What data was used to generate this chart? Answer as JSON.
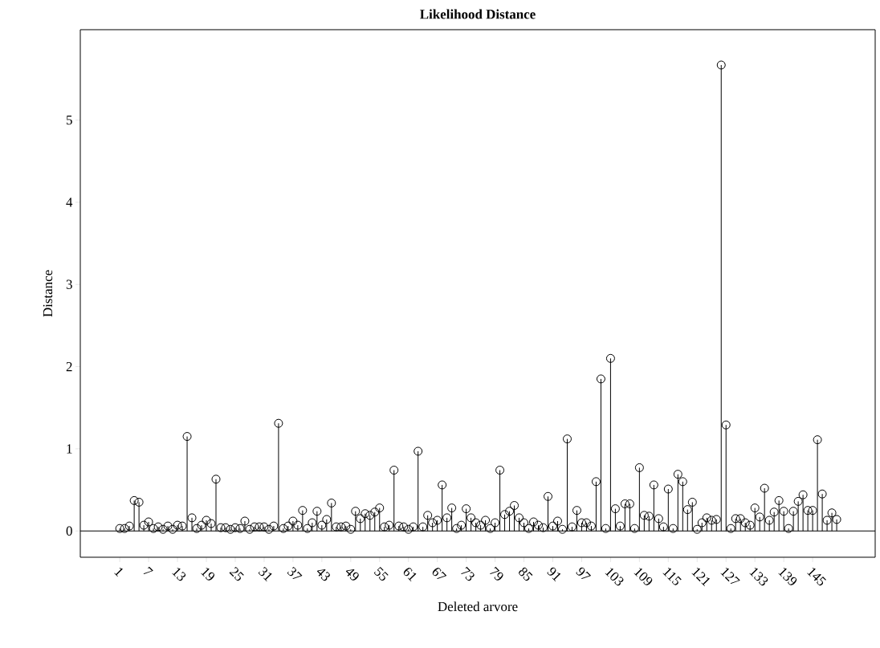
{
  "chart_data": {
    "type": "lollipop",
    "title": "Likelihood Distance",
    "xlabel": "Deleted arvore",
    "ylabel": "Distance",
    "categories": [
      "1",
      null,
      null,
      null,
      null,
      null,
      "7",
      null,
      null,
      null,
      null,
      null,
      "13",
      null,
      null,
      null,
      null,
      null,
      "19",
      null,
      null,
      null,
      null,
      null,
      "25",
      null,
      null,
      null,
      null,
      null,
      "31",
      null,
      null,
      null,
      null,
      null,
      "37",
      null,
      null,
      null,
      null,
      null,
      "43",
      null,
      null,
      null,
      null,
      null,
      "49",
      null,
      null,
      null,
      null,
      null,
      "55",
      null,
      null,
      null,
      null,
      null,
      "61",
      null,
      null,
      null,
      null,
      null,
      "67",
      null,
      null,
      null,
      null,
      null,
      "73",
      null,
      null,
      null,
      null,
      null,
      "79",
      null,
      null,
      null,
      null,
      null,
      "85",
      null,
      null,
      null,
      null,
      null,
      "91",
      null,
      null,
      null,
      null,
      null,
      "97",
      null,
      null,
      null,
      null,
      null,
      "103",
      null,
      null,
      null,
      null,
      null,
      "109",
      null,
      null,
      null,
      null,
      null,
      "115",
      null,
      null,
      null,
      null,
      null,
      "121",
      null,
      null,
      null,
      null,
      null,
      "127",
      null,
      null,
      null,
      null,
      null,
      "133",
      null,
      null,
      null,
      null,
      null,
      "139",
      null,
      null,
      null,
      null,
      null,
      "145",
      null,
      null,
      null,
      null,
      null
    ],
    "values": [
      0.03,
      0.03,
      0.06,
      0.37,
      0.35,
      0.07,
      0.11,
      0.03,
      0.05,
      0.02,
      0.06,
      0.02,
      0.07,
      0.06,
      1.15,
      0.16,
      0.03,
      0.07,
      0.13,
      0.09,
      0.63,
      0.04,
      0.04,
      0.02,
      0.04,
      0.03,
      0.12,
      0.02,
      0.05,
      0.05,
      0.05,
      0.02,
      0.06,
      1.31,
      0.03,
      0.06,
      0.12,
      0.07,
      0.25,
      0.03,
      0.1,
      0.24,
      0.07,
      0.14,
      0.34,
      0.05,
      0.05,
      0.06,
      0.02,
      0.24,
      0.15,
      0.21,
      0.19,
      0.23,
      0.28,
      0.05,
      0.07,
      0.74,
      0.06,
      0.05,
      0.02,
      0.05,
      0.97,
      0.05,
      0.19,
      0.1,
      0.13,
      0.56,
      0.16,
      0.28,
      0.03,
      0.07,
      0.27,
      0.16,
      0.1,
      0.07,
      0.13,
      0.03,
      0.1,
      0.74,
      0.2,
      0.24,
      0.31,
      0.16,
      0.1,
      0.03,
      0.11,
      0.07,
      0.04,
      0.42,
      0.06,
      0.12,
      0.02,
      1.12,
      0.05,
      0.25,
      0.1,
      0.1,
      0.06,
      0.6,
      1.85,
      0.03,
      2.1,
      0.27,
      0.06,
      0.33,
      0.33,
      0.03,
      0.77,
      0.19,
      0.18,
      0.56,
      0.15,
      0.05,
      0.51,
      0.03,
      0.69,
      0.6,
      0.26,
      0.35,
      0.02,
      0.1,
      0.16,
      0.13,
      0.14,
      5.67,
      1.29,
      0.03,
      0.15,
      0.15,
      0.1,
      0.07,
      0.28,
      0.17,
      0.52,
      0.13,
      0.23,
      0.37,
      0.24,
      0.03,
      0.24,
      0.36,
      0.44,
      0.25,
      0.25,
      1.11,
      0.45,
      0.13,
      0.22,
      0.14
    ],
    "color": "#000000",
    "marker": "circle",
    "ylim": [
      -0.32,
      6.1
    ],
    "yticks": [
      0,
      1,
      2,
      3,
      4,
      5
    ],
    "grid": false,
    "ref_lines": [
      {
        "axis": "y",
        "value": 0
      }
    ]
  }
}
